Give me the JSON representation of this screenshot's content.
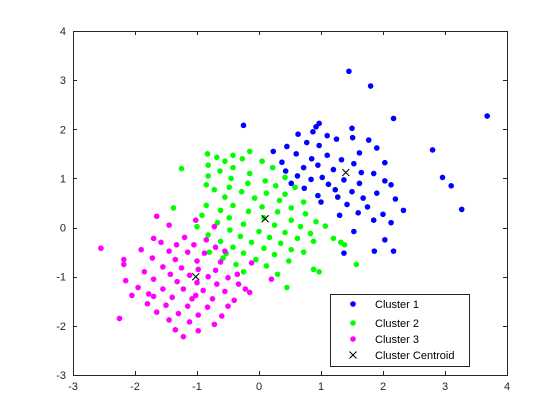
{
  "chart_data": {
    "type": "scatter",
    "xlim": [
      -3,
      4
    ],
    "ylim": [
      -3,
      4
    ],
    "xticks": [
      "-3",
      "-2",
      "-1",
      "0",
      "1",
      "2",
      "3",
      "4"
    ],
    "yticks": [
      "-3",
      "-2",
      "-1",
      "0",
      "1",
      "2",
      "3",
      "4"
    ],
    "grid": false,
    "legend_position": "bottom-right",
    "series": [
      {
        "name": "Cluster 1",
        "marker": "dot",
        "color": "#0000ff",
        "points": [
          [
            1.45,
            3.18
          ],
          [
            1.8,
            2.88
          ],
          [
            3.68,
            2.27
          ],
          [
            2.17,
            2.22
          ],
          [
            0.97,
            2.12
          ],
          [
            0.92,
            2.05
          ],
          [
            1.5,
            2.02
          ],
          [
            0.87,
            1.95
          ],
          [
            0.63,
            1.9
          ],
          [
            1.1,
            1.87
          ],
          [
            1.51,
            1.83
          ],
          [
            1.25,
            1.8
          ],
          [
            1.77,
            1.78
          ],
          [
            0.77,
            1.73
          ],
          [
            0.97,
            1.67
          ],
          [
            0.45,
            1.65
          ],
          [
            1.9,
            1.62
          ],
          [
            2.8,
            1.58
          ],
          [
            0.23,
            1.55
          ],
          [
            1.62,
            1.52
          ],
          [
            0.6,
            1.5
          ],
          [
            1.1,
            1.47
          ],
          [
            0.85,
            1.4
          ],
          [
            1.33,
            1.38
          ],
          [
            0.37,
            1.33
          ],
          [
            1.53,
            1.3
          ],
          [
            2.03,
            1.32
          ],
          [
            0.95,
            1.27
          ],
          [
            0.72,
            1.22
          ],
          [
            1.2,
            1.18
          ],
          [
            0.43,
            1.15
          ],
          [
            1.65,
            1.12
          ],
          [
            1.85,
            1.1
          ],
          [
            0.62,
            1.05
          ],
          [
            1.02,
            1.02
          ],
          [
            2.96,
            1.02
          ],
          [
            0.84,
            0.98
          ],
          [
            1.37,
            0.97
          ],
          [
            2.03,
            0.95
          ],
          [
            0.52,
            0.9
          ],
          [
            1.12,
            0.88
          ],
          [
            1.62,
            0.9
          ],
          [
            2.13,
            0.87
          ],
          [
            3.1,
            0.85
          ],
          [
            0.73,
            0.8
          ],
          [
            1.23,
            0.77
          ],
          [
            1.5,
            0.73
          ],
          [
            1.9,
            0.7
          ],
          [
            0.95,
            0.65
          ],
          [
            1.27,
            0.62
          ],
          [
            1.68,
            0.6
          ],
          [
            2.2,
            0.58
          ],
          [
            1.0,
            0.52
          ],
          [
            1.42,
            0.47
          ],
          [
            1.75,
            0.42
          ],
          [
            2.33,
            0.35
          ],
          [
            3.27,
            0.37
          ],
          [
            1.6,
            0.3
          ],
          [
            2.0,
            0.27
          ],
          [
            1.3,
            0.25
          ],
          [
            1.85,
            0.15
          ],
          [
            2.13,
            0.1
          ],
          [
            1.53,
            -0.08
          ],
          [
            2.03,
            -0.25
          ],
          [
            1.86,
            -0.48
          ],
          [
            2.17,
            -0.48
          ],
          [
            1.37,
            -0.52
          ],
          [
            -0.25,
            2.08
          ]
        ]
      },
      {
        "name": "Cluster 2",
        "marker": "dot",
        "color": "#00ff00",
        "points": [
          [
            -0.83,
            1.5
          ],
          [
            -0.42,
            1.47
          ],
          [
            -0.15,
            1.55
          ],
          [
            -0.68,
            1.43
          ],
          [
            -0.27,
            1.4
          ],
          [
            -0.55,
            1.35
          ],
          [
            0.05,
            1.35
          ],
          [
            -1.25,
            1.2
          ],
          [
            -0.82,
            1.27
          ],
          [
            -0.42,
            1.22
          ],
          [
            0.22,
            1.22
          ],
          [
            -0.63,
            1.15
          ],
          [
            -0.15,
            1.1
          ],
          [
            0.42,
            1.02
          ],
          [
            -0.82,
            1.05
          ],
          [
            -0.45,
            1.0
          ],
          [
            0.1,
            0.95
          ],
          [
            -0.18,
            0.9
          ],
          [
            -0.85,
            0.87
          ],
          [
            -0.48,
            0.82
          ],
          [
            0.27,
            0.85
          ],
          [
            0.58,
            0.82
          ],
          [
            -0.72,
            0.77
          ],
          [
            -0.28,
            0.73
          ],
          [
            0.12,
            0.7
          ],
          [
            0.42,
            0.68
          ],
          [
            -0.55,
            0.62
          ],
          [
            -0.07,
            0.6
          ],
          [
            0.33,
            0.55
          ],
          [
            0.72,
            0.52
          ],
          [
            -0.85,
            0.45
          ],
          [
            -0.42,
            0.45
          ],
          [
            0.05,
            0.42
          ],
          [
            0.52,
            0.4
          ],
          [
            -0.62,
            0.35
          ],
          [
            -0.17,
            0.33
          ],
          [
            0.3,
            0.32
          ],
          [
            0.75,
            0.28
          ],
          [
            -1.38,
            0.4
          ],
          [
            -0.92,
            0.25
          ],
          [
            -0.48,
            0.2
          ],
          [
            0.08,
            0.2
          ],
          [
            0.52,
            0.15
          ],
          [
            0.92,
            0.12
          ],
          [
            -0.67,
            0.1
          ],
          [
            -0.25,
            0.07
          ],
          [
            0.25,
            0.05
          ],
          [
            0.67,
            0.02
          ],
          [
            1.07,
            0.03
          ],
          [
            -1.0,
            0.02
          ],
          [
            -0.47,
            -0.05
          ],
          [
            0.0,
            -0.08
          ],
          [
            0.42,
            -0.1
          ],
          [
            0.83,
            -0.12
          ],
          [
            -0.82,
            -0.15
          ],
          [
            -0.3,
            -0.18
          ],
          [
            0.17,
            -0.2
          ],
          [
            0.62,
            -0.22
          ],
          [
            1.2,
            -0.22
          ],
          [
            -0.62,
            -0.28
          ],
          [
            -0.12,
            -0.3
          ],
          [
            0.35,
            -0.32
          ],
          [
            0.88,
            -0.28
          ],
          [
            -0.42,
            -0.4
          ],
          [
            0.08,
            -0.42
          ],
          [
            0.52,
            -0.45
          ],
          [
            1.32,
            -0.3
          ],
          [
            1.38,
            -0.35
          ],
          [
            -0.8,
            -0.5
          ],
          [
            -0.25,
            -0.52
          ],
          [
            0.25,
            -0.55
          ],
          [
            0.72,
            -0.5
          ],
          [
            -0.58,
            -0.62
          ],
          [
            -0.05,
            -0.65
          ],
          [
            0.48,
            -0.68
          ],
          [
            1.57,
            -0.75
          ],
          [
            -0.37,
            -0.75
          ],
          [
            0.12,
            -0.78
          ],
          [
            0.88,
            -0.85
          ],
          [
            0.97,
            -0.9
          ],
          [
            -0.25,
            -0.9
          ],
          [
            0.3,
            -0.95
          ],
          [
            0.45,
            -1.22
          ],
          [
            -0.53,
            -0.53
          ]
        ]
      },
      {
        "name": "Cluster 3",
        "marker": "dot",
        "color": "#ff00ff",
        "points": [
          [
            -1.65,
            0.23
          ],
          [
            -1.02,
            0.15
          ],
          [
            -1.45,
            0.05
          ],
          [
            -0.72,
            0.02
          ],
          [
            -1.7,
            -0.22
          ],
          [
            -1.2,
            -0.2
          ],
          [
            -0.85,
            -0.25
          ],
          [
            -2.55,
            -0.42
          ],
          [
            -1.58,
            -0.3
          ],
          [
            -1.33,
            -0.35
          ],
          [
            -1.05,
            -0.35
          ],
          [
            -0.7,
            -0.4
          ],
          [
            -1.9,
            -0.45
          ],
          [
            -1.45,
            -0.48
          ],
          [
            -1.15,
            -0.5
          ],
          [
            -0.88,
            -0.52
          ],
          [
            -2.18,
            -0.65
          ],
          [
            -1.72,
            -0.62
          ],
          [
            -1.35,
            -0.65
          ],
          [
            -1.0,
            -0.68
          ],
          [
            -0.62,
            -0.7
          ],
          [
            -2.18,
            -0.75
          ],
          [
            -1.55,
            -0.8
          ],
          [
            -1.25,
            -0.82
          ],
          [
            -0.98,
            -0.85
          ],
          [
            -0.7,
            -0.87
          ],
          [
            -1.85,
            -0.9
          ],
          [
            -1.43,
            -0.95
          ],
          [
            -1.12,
            -0.97
          ],
          [
            -0.82,
            -1.0
          ],
          [
            -0.5,
            -1.02
          ],
          [
            -2.15,
            -1.08
          ],
          [
            -1.7,
            -1.05
          ],
          [
            -1.32,
            -1.1
          ],
          [
            -1.0,
            -1.12
          ],
          [
            -0.68,
            -1.15
          ],
          [
            -0.33,
            -1.15
          ],
          [
            -1.95,
            -1.22
          ],
          [
            -1.55,
            -1.25
          ],
          [
            -1.22,
            -1.25
          ],
          [
            -0.9,
            -1.28
          ],
          [
            -0.55,
            -1.3
          ],
          [
            -0.15,
            -1.32
          ],
          [
            -2.05,
            -1.38
          ],
          [
            -1.7,
            -1.4
          ],
          [
            -1.4,
            -1.42
          ],
          [
            -1.08,
            -1.45
          ],
          [
            -0.75,
            -1.45
          ],
          [
            -0.4,
            -1.48
          ],
          [
            -1.8,
            -1.55
          ],
          [
            -1.5,
            -1.58
          ],
          [
            -1.15,
            -1.6
          ],
          [
            -0.83,
            -1.62
          ],
          [
            -0.5,
            -1.6
          ],
          [
            -1.65,
            -1.72
          ],
          [
            -1.3,
            -1.75
          ],
          [
            -0.98,
            -1.78
          ],
          [
            -0.6,
            -1.8
          ],
          [
            -1.45,
            -1.88
          ],
          [
            -1.12,
            -1.92
          ],
          [
            -0.72,
            -1.97
          ],
          [
            -2.25,
            -1.85
          ],
          [
            -1.35,
            -2.08
          ],
          [
            -0.98,
            -2.1
          ],
          [
            -1.22,
            -2.22
          ],
          [
            -0.35,
            -0.95
          ],
          [
            -0.12,
            -0.72
          ],
          [
            -0.55,
            -0.48
          ],
          [
            0.2,
            -1.05
          ],
          [
            -1.78,
            -1.35
          ],
          [
            -1.02,
            -1.38
          ],
          [
            -0.22,
            -1.25
          ]
        ]
      },
      {
        "name": "Cluster Centroid",
        "marker": "x",
        "color": "#000000",
        "points": [
          [
            -1.02,
            -1.0
          ],
          [
            0.1,
            0.18
          ],
          [
            1.4,
            1.12
          ]
        ]
      }
    ]
  }
}
